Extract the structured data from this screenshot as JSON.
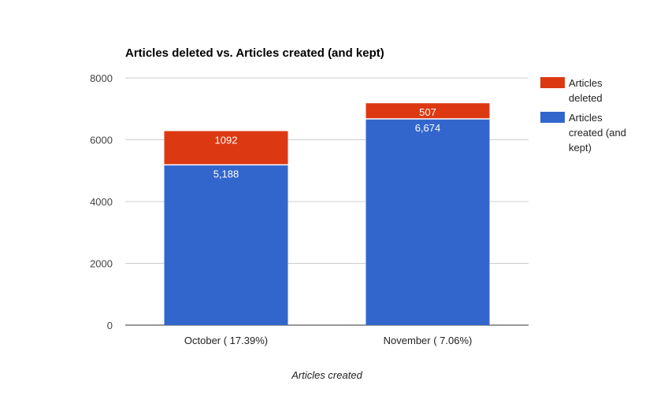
{
  "chart_data": {
    "type": "bar",
    "stacked": true,
    "title": "Articles deleted vs. Articles created (and kept)",
    "xlabel": "Articles created",
    "ylabel": "",
    "ylim": [
      0,
      8000
    ],
    "yticks": [
      0,
      2000,
      4000,
      6000,
      8000
    ],
    "grid": true,
    "legend_position": "right",
    "categories": [
      "October ( 17.39%)",
      "November ( 7.06%)"
    ],
    "series": [
      {
        "name": "Articles created (and kept)",
        "color": "#3366cc",
        "values": [
          5188,
          6674
        ],
        "labels": [
          "5,188",
          "6,674"
        ]
      },
      {
        "name": "Articles deleted",
        "color": "#dc3912",
        "values": [
          1092,
          507
        ],
        "labels": [
          "1092",
          "507"
        ]
      }
    ],
    "legend": [
      {
        "lines": [
          "Articles",
          "deleted"
        ],
        "color": "#dc3912"
      },
      {
        "lines": [
          "Articles",
          "created (and",
          "kept)"
        ],
        "color": "#3366cc"
      }
    ]
  }
}
